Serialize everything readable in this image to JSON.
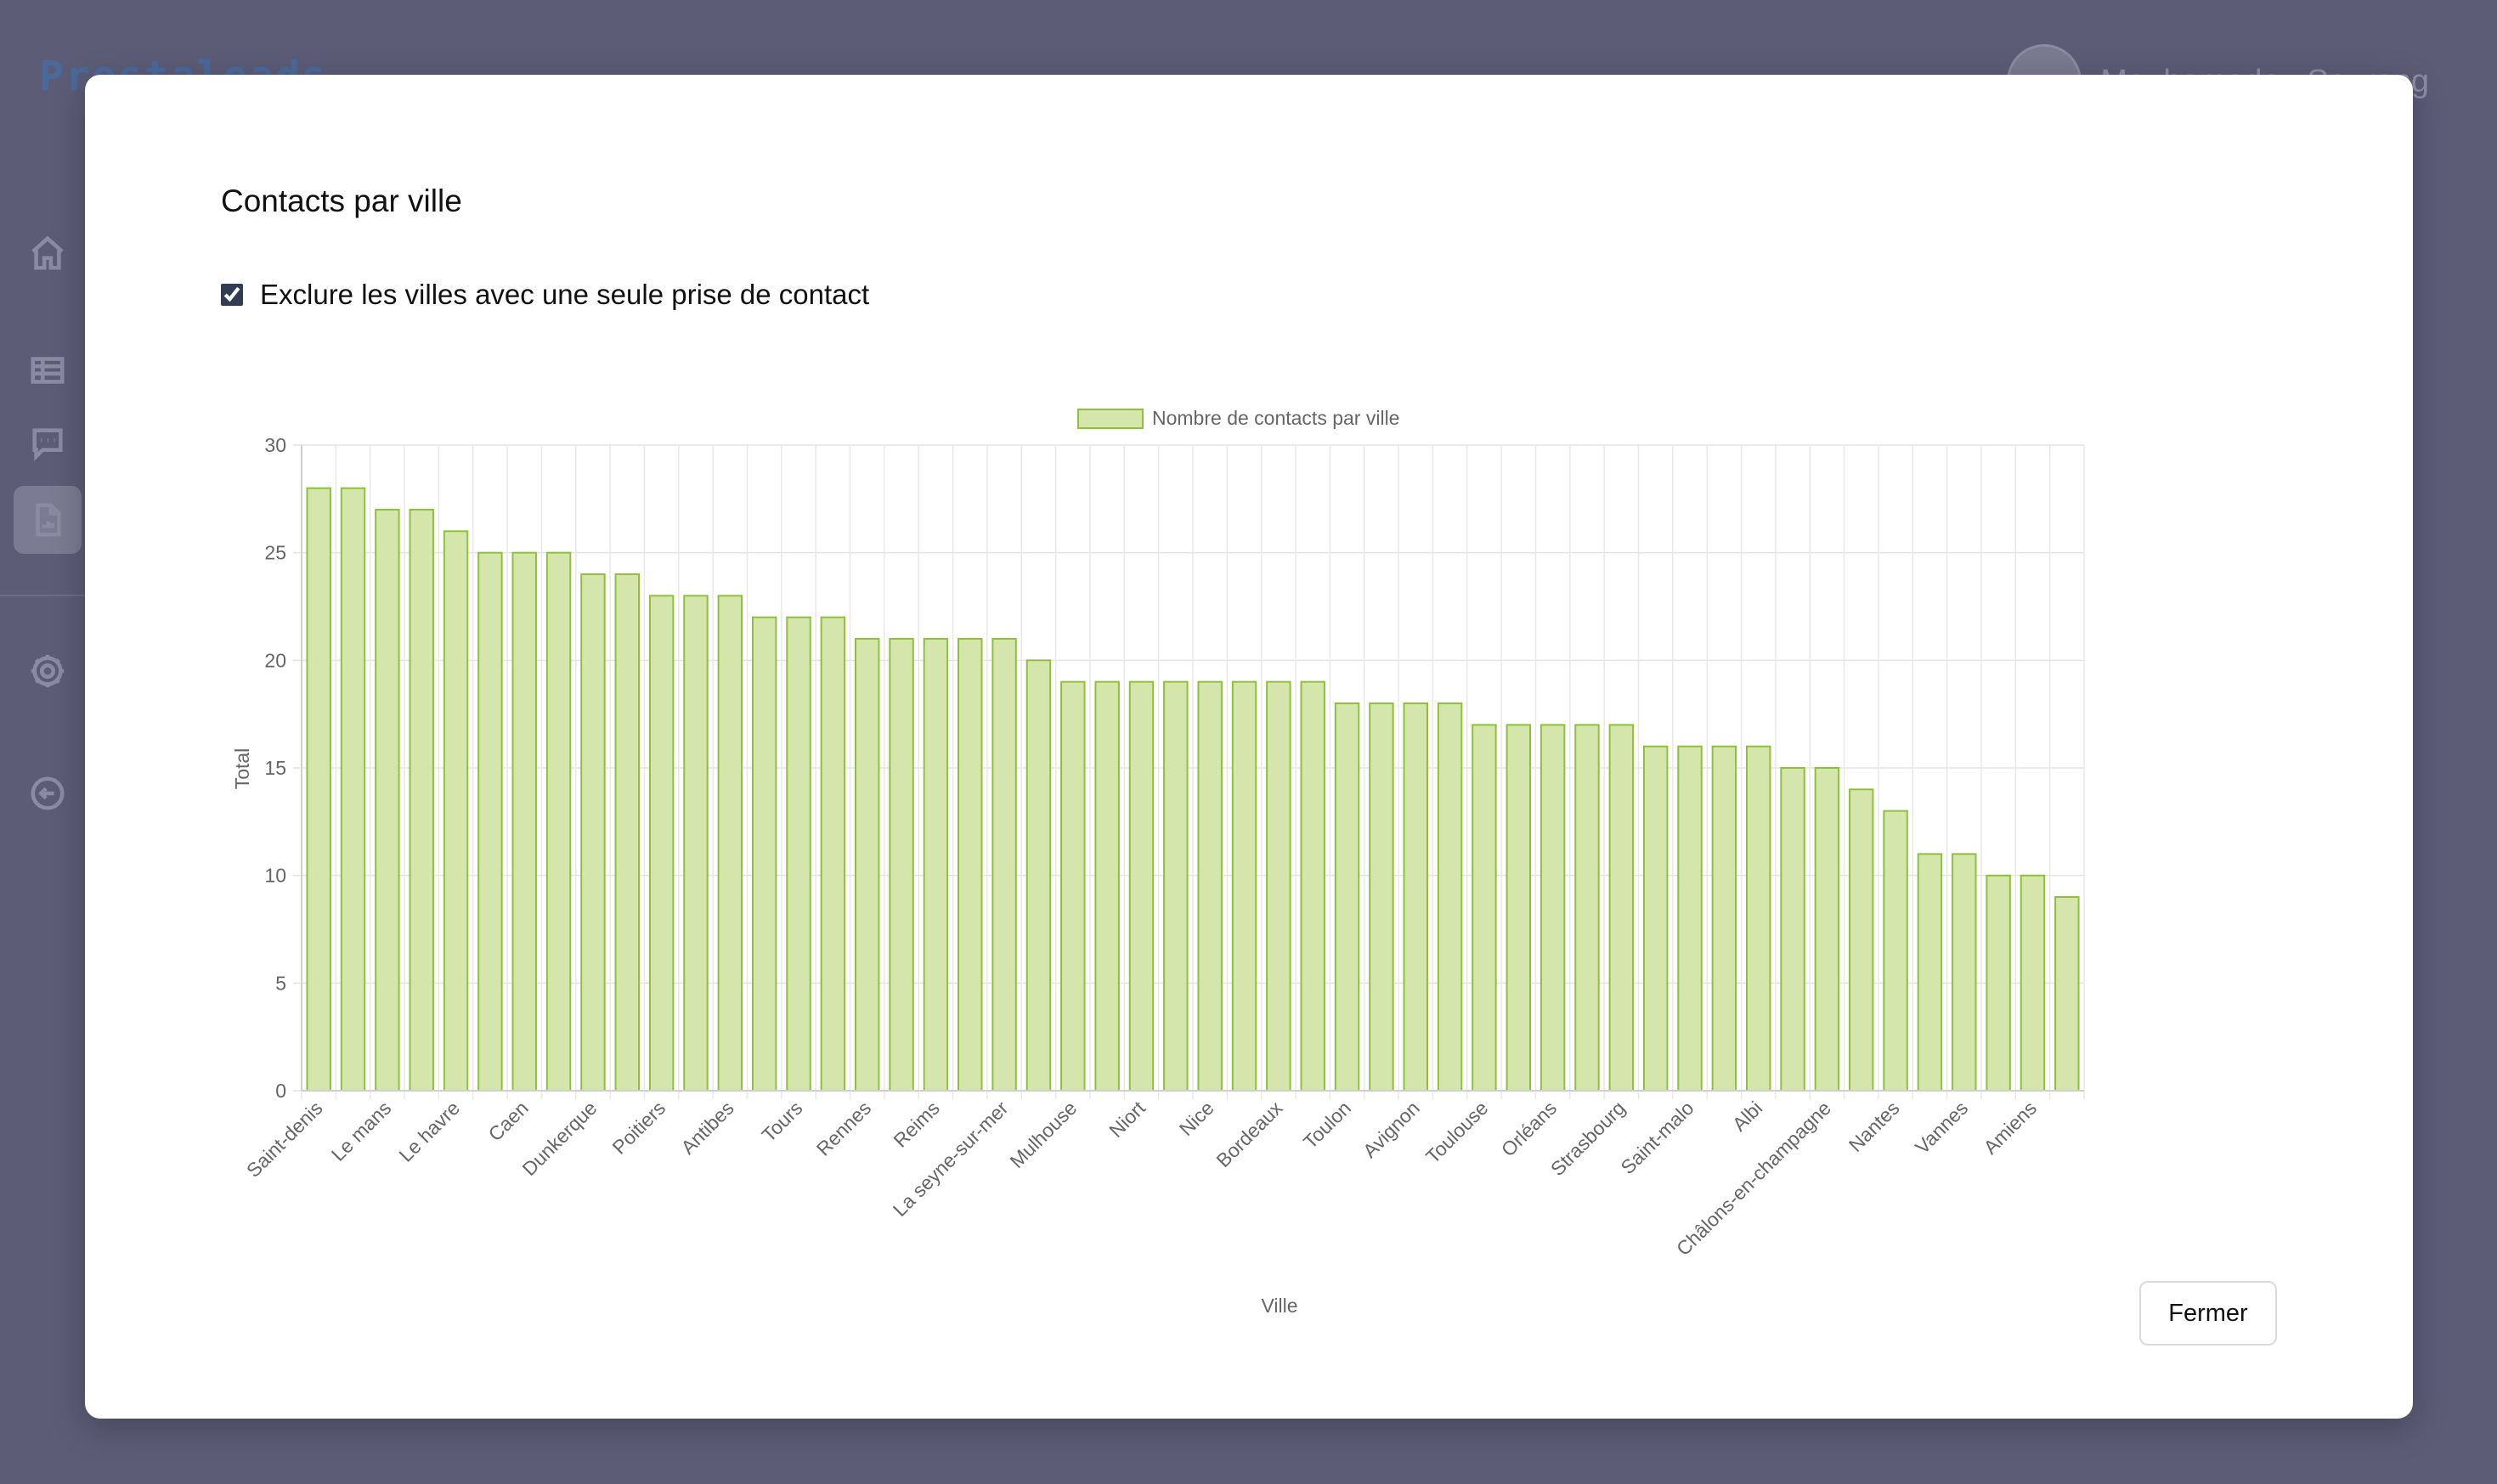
{
  "app": {
    "brand": "Prestaleads",
    "user_name": "Mouhamadou Sourang"
  },
  "sidebar": {
    "items": [
      {
        "icon": "home-icon"
      },
      {
        "icon": "table-icon"
      },
      {
        "icon": "chat-icon"
      },
      {
        "icon": "report-icon",
        "active": true
      },
      {
        "icon": "settings-icon"
      },
      {
        "icon": "logout-icon"
      }
    ]
  },
  "modal": {
    "title": "Contacts par ville",
    "filter_label": "Exclure les villes avec une seule prise de contact",
    "filter_checked": true,
    "close_label": "Fermer"
  },
  "chart_data": {
    "type": "bar",
    "legend": [
      "Nombre de contacts par ville"
    ],
    "legend_position": "top",
    "xlabel": "Ville",
    "ylabel": "Total",
    "ylim": [
      0,
      30
    ],
    "yticks": [
      0,
      5,
      10,
      15,
      20,
      25,
      30
    ],
    "grid": true,
    "colors": {
      "fill": "#d5e6ac",
      "stroke": "#8fc03a"
    },
    "categories": [
      "Saint-denis",
      "",
      "Le mans",
      "",
      "Le havre",
      "",
      "Caen",
      "",
      "Dunkerque",
      "",
      "Poitiers",
      "",
      "Antibes",
      "",
      "Tours",
      "",
      "Rennes",
      "",
      "Reims",
      "",
      "La seyne-sur-mer",
      "",
      "Mulhouse",
      "",
      "Niort",
      "",
      "Nice",
      "",
      "Bordeaux",
      "",
      "Toulon",
      "",
      "Avignon",
      "",
      "Toulouse",
      "",
      "Orléans",
      "",
      "Strasbourg",
      "",
      "Saint-malo",
      "",
      "Albi",
      "",
      "Châlons-en-champagne",
      "",
      "Nantes",
      "",
      "Vannes",
      "",
      "Amiens",
      ""
    ],
    "series": [
      {
        "name": "Nombre de contacts par ville",
        "values": [
          28,
          28,
          27,
          27,
          26,
          25,
          25,
          25,
          24,
          24,
          23,
          23,
          23,
          22,
          22,
          22,
          21,
          21,
          21,
          21,
          21,
          20,
          19,
          19,
          19,
          19,
          19,
          19,
          19,
          19,
          18,
          18,
          18,
          18,
          17,
          17,
          17,
          17,
          17,
          16,
          16,
          16,
          16,
          15,
          15,
          14,
          13,
          11,
          11,
          10,
          10,
          9
        ]
      }
    ]
  }
}
